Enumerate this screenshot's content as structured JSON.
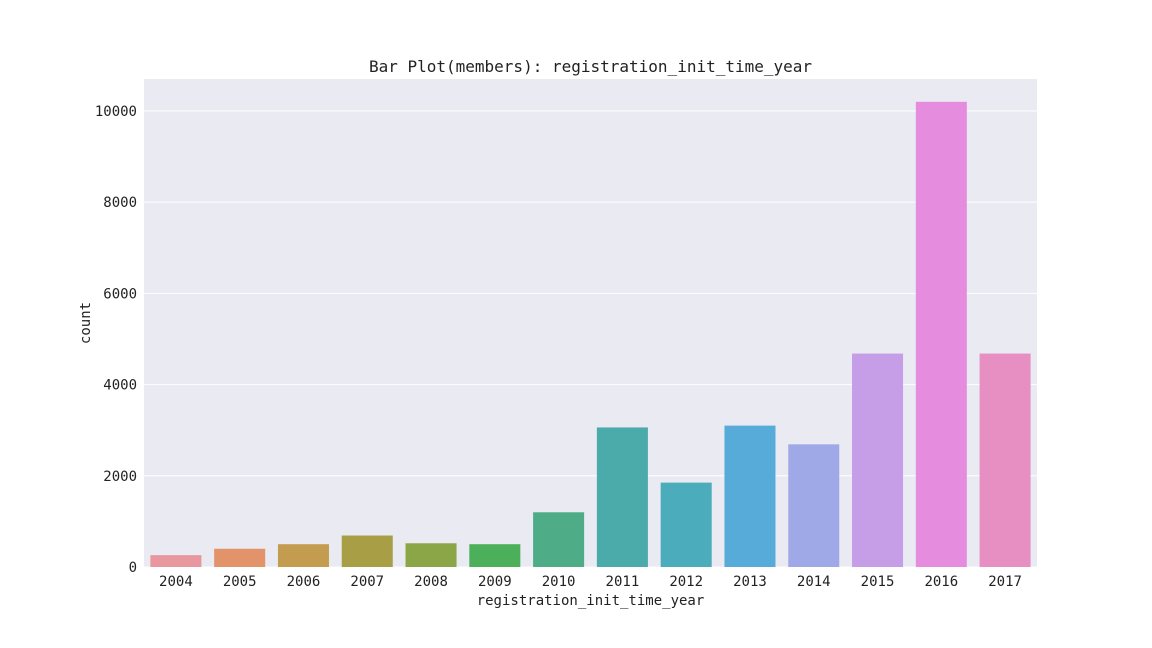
{
  "chart_data": {
    "type": "bar",
    "title": "Bar Plot(members): registration_init_time_year",
    "xlabel": "registration_init_time_year",
    "ylabel": "count",
    "categories": [
      "2004",
      "2005",
      "2006",
      "2007",
      "2008",
      "2009",
      "2010",
      "2011",
      "2012",
      "2013",
      "2014",
      "2015",
      "2016",
      "2017"
    ],
    "values": [
      260,
      400,
      500,
      690,
      520,
      500,
      1200,
      3060,
      1850,
      3100,
      2690,
      4680,
      10200,
      4680
    ],
    "colors": [
      "#e8979f",
      "#e2936a",
      "#c39c50",
      "#a89e45",
      "#8ba646",
      "#4caf5a",
      "#4ead87",
      "#4babaa",
      "#4bacbb",
      "#56abd8",
      "#a0a9e8",
      "#c69de7",
      "#e68cdf",
      "#e78fc2"
    ],
    "ylim": [
      0,
      10700
    ],
    "yticks": [
      0,
      2000,
      4000,
      6000,
      8000,
      10000
    ],
    "grid": true,
    "background": "#eaeaf2"
  }
}
